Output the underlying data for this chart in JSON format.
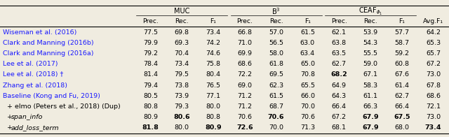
{
  "rows": [
    {
      "label": "Wiseman et al. (2016)",
      "values": [
        "77.5",
        "69.8",
        "73.4",
        "66.8",
        "57.0",
        "61.5",
        "62.1",
        "53.9",
        "57.7",
        "64.2"
      ],
      "bold": [],
      "color": "blue",
      "italic_label": false,
      "indent": false
    },
    {
      "label": "Clark and Manning (2016b)",
      "values": [
        "79.9",
        "69.3",
        "74.2",
        "71.0",
        "56.5",
        "63.0",
        "63.8",
        "54.3",
        "58.7",
        "65.3"
      ],
      "bold": [],
      "color": "blue",
      "italic_label": false,
      "indent": false
    },
    {
      "label": "Clark and Manning (2016a)",
      "values": [
        "79.2",
        "70.4",
        "74.6",
        "69.9",
        "58.0",
        "63.4",
        "63.5",
        "55.5",
        "59.2",
        "65.7"
      ],
      "bold": [],
      "color": "blue",
      "italic_label": false,
      "indent": false
    },
    {
      "label": "Lee et al. (2017)",
      "values": [
        "78.4",
        "73.4",
        "75.8",
        "68.6",
        "61.8",
        "65.0",
        "62.7",
        "59.0",
        "60.8",
        "67.2"
      ],
      "bold": [],
      "color": "blue",
      "italic_label": false,
      "indent": false
    },
    {
      "label": "Lee et al. (2018) †",
      "values": [
        "81.4",
        "79.5",
        "80.4",
        "72.2",
        "69.5",
        "70.8",
        "68.2",
        "67.1",
        "67.6",
        "73.0"
      ],
      "bold": [
        6
      ],
      "color": "blue",
      "italic_label": false,
      "indent": false
    },
    {
      "label": "Zhang et al. (2018)",
      "values": [
        "79.4",
        "73.8",
        "76.5",
        "69.0",
        "62.3",
        "65.5",
        "64.9",
        "58.3",
        "61.4",
        "67.8"
      ],
      "bold": [],
      "color": "blue",
      "italic_label": false,
      "indent": false
    },
    {
      "label": "Baseline (Kong and Fu, 2019)",
      "values": [
        "80.5",
        "73.9",
        "77.1",
        "71.2",
        "61.5",
        "66.0",
        "64.3",
        "61.1",
        "62.7",
        "68.6"
      ],
      "bold": [],
      "color": "blue",
      "italic_label": false,
      "indent": false
    },
    {
      "label": "+ elmo (Peters et al., 2018) (Dup)",
      "values": [
        "80.8",
        "79.3",
        "80.0",
        "71.2",
        "68.7",
        "70.0",
        "66.4",
        "66.3",
        "66.4",
        "72.1"
      ],
      "bold": [],
      "color": "black",
      "italic_label": false,
      "indent": true
    },
    {
      "label_parts": [
        "+ ",
        "span_info"
      ],
      "label_italic": [
        false,
        true
      ],
      "values": [
        "80.9",
        "80.6",
        "80.8",
        "70.6",
        "70.6",
        "70.6",
        "67.2",
        "67.9",
        "67.5",
        "73.0"
      ],
      "bold": [
        1,
        4,
        7,
        8
      ],
      "color": "black",
      "italic_label": true,
      "indent": true
    },
    {
      "label_parts": [
        "+ ",
        "add_loss_term"
      ],
      "label_italic": [
        false,
        true
      ],
      "values": [
        "81.8",
        "80.0",
        "80.9",
        "72.6",
        "70.0",
        "71.3",
        "68.1",
        "67.9",
        "68.0",
        "73.4"
      ],
      "bold": [
        0,
        2,
        3,
        7,
        9
      ],
      "color": "black",
      "italic_label": true,
      "indent": true
    }
  ],
  "col_headers_sub": [
    "Prec.",
    "Rec.",
    "F₁",
    "Prec.",
    "Rec.",
    "F₁",
    "Prec.",
    "Rec.",
    "F₁",
    "Avg.F₁"
  ],
  "blue_color": "#1a1aff",
  "black_color": "#000000",
  "bg_color": "#f0ece0",
  "font_size": 6.8,
  "header_font_size": 7.0
}
